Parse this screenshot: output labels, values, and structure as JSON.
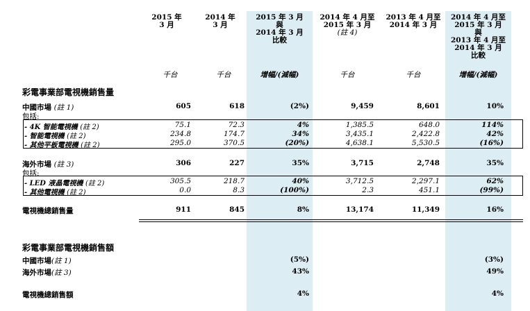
{
  "columns": [
    {
      "header": [
        "2015 年",
        "3 月"
      ],
      "unit": "千台"
    },
    {
      "header": [
        "2014 年",
        "3 月"
      ],
      "unit": "千台"
    },
    {
      "header": [
        "2015 年 3 月",
        "與",
        "2014 年 3 月",
        "比較"
      ],
      "unit": "增幅/(減幅)"
    },
    {
      "header": [
        "2014 年 4 月至",
        "2015 年 3 月",
        "(註 4)"
      ],
      "unit": "千台"
    },
    {
      "header": [
        "2013 年 4 月至",
        "2014 年 3 月"
      ],
      "unit": "千台"
    },
    {
      "header": [
        "2014 年 4 月至",
        "2015 年 3 月",
        "與",
        "2013 年 4 月至",
        "2014 年 3 月",
        "比較"
      ],
      "unit": "增幅/(減幅)"
    }
  ],
  "volume_section": {
    "title": "彩電事業部電視機銷售量",
    "china": {
      "label": "中國市場",
      "note": "(註 1)",
      "values": [
        "605",
        "618",
        "(2%)",
        "9,459",
        "8,601",
        "10%"
      ]
    },
    "china_incl": "包括:",
    "china_items": [
      {
        "label": "- 4K 智能電視機",
        "note": "(註 2)",
        "values": [
          "75.1",
          "72.3",
          "4%",
          "1,385.5",
          "648.0",
          "114%"
        ]
      },
      {
        "label": "- 智能電視機",
        "note": "(註 2)",
        "values": [
          "234.8",
          "174.7",
          "34%",
          "3,435.1",
          "2,422.8",
          "42%"
        ]
      },
      {
        "label": "- 其他平板電視機",
        "note": "(註 2)",
        "values": [
          "295.0",
          "370.5",
          "(20%)",
          "4,638.1",
          "5,530.5",
          "(16%)"
        ]
      }
    ],
    "overseas": {
      "label": "海外市場",
      "note": "(註 3)",
      "values": [
        "306",
        "227",
        "35%",
        "3,715",
        "2,748",
        "35%"
      ]
    },
    "overseas_incl": "包括:",
    "overseas_items": [
      {
        "label": "- LED 液晶電視機",
        "note": "(註 2)",
        "values": [
          "305.5",
          "218.7",
          "40%",
          "3,712.5",
          "2,297.1",
          "62%"
        ]
      },
      {
        "label": "- 其他電視機",
        "note": "(註 2)",
        "values": [
          "0.0",
          "8.3",
          "(100%)",
          "2.3",
          "451.1",
          "(99%)"
        ]
      }
    ],
    "total": {
      "label": "電視機總銷售量",
      "values": [
        "911",
        "845",
        "8%",
        "13,174",
        "11,349",
        "16%"
      ]
    }
  },
  "revenue_section": {
    "title": "彩電事業部電視機銷售額",
    "china": {
      "label": "中國市場",
      "note": "(註 1)",
      "change_month": "(5%)",
      "change_year": "(3%)"
    },
    "overseas": {
      "label": "海外市場",
      "note": "(註 3)",
      "change_month": "43%",
      "change_year": "49%"
    },
    "total": {
      "label": "電視機總銷售額",
      "change_month": "4%",
      "change_year": "4%"
    }
  }
}
